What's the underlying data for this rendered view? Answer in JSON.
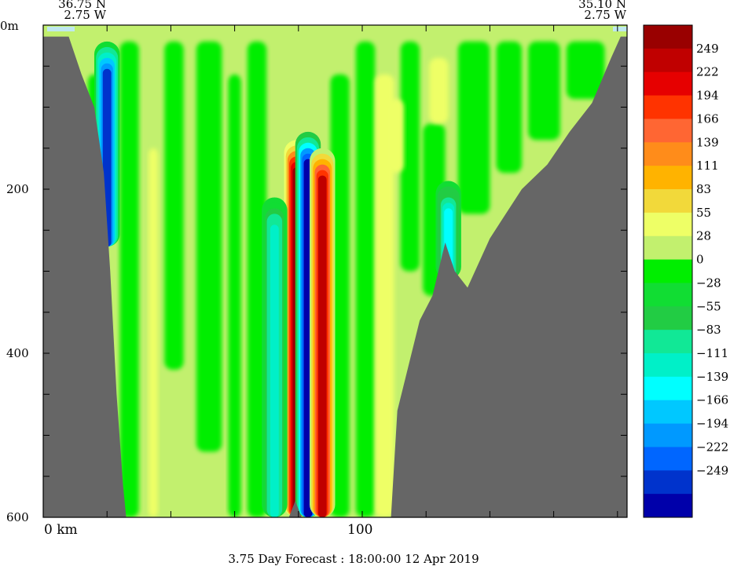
{
  "chart_data": {
    "type": "heatmap",
    "title": "",
    "xlabel": "",
    "ylabel": "",
    "corner_left": {
      "lat": "36.75 N",
      "lon": "2.75 W"
    },
    "corner_right": {
      "lat": "35.10 N",
      "lon": "2.75 W"
    },
    "x_ticks": [
      {
        "value": 0,
        "label": "0 km"
      },
      {
        "value": 100,
        "label": "100"
      }
    ],
    "xlim": [
      0,
      183
    ],
    "y_ticks": [
      {
        "value": 0,
        "label": "0m"
      },
      {
        "value": 200,
        "label": "200"
      },
      {
        "value": 400,
        "label": "400"
      },
      {
        "value": 600,
        "label": "600"
      }
    ],
    "ylim": [
      0,
      600
    ],
    "colorbar": {
      "labels": [
        "249",
        "222",
        "194",
        "166",
        "139",
        "111",
        "83",
        "55",
        "28",
        "0",
        "−28",
        "−55",
        "−83",
        "−111",
        "−139",
        "−166",
        "−194",
        "−222",
        "−249"
      ],
      "colors": [
        "#990000",
        "#c00000",
        "#e60000",
        "#ff3300",
        "#ff6633",
        "#ff8c1a",
        "#ffb300",
        "#f2d93a",
        "#eeff66",
        "#c2f06e",
        "#00ee00",
        "#11dd33",
        "#22cc44",
        "#11e896",
        "#00f0c8",
        "#00ffff",
        "#00c8ff",
        "#0099ff",
        "#0066ff",
        "#0033cc",
        "#0000aa"
      ]
    },
    "bathymetry_profile": [
      [
        0,
        14
      ],
      [
        8,
        14
      ],
      [
        12,
        60
      ],
      [
        16,
        100
      ],
      [
        19,
        180
      ],
      [
        21,
        300
      ],
      [
        23,
        450
      ],
      [
        25,
        560
      ],
      [
        26,
        600
      ],
      [
        77,
        600
      ],
      [
        79,
        580
      ],
      [
        81,
        600
      ],
      [
        109,
        600
      ],
      [
        111,
        470
      ],
      [
        118,
        360
      ],
      [
        122,
        330
      ],
      [
        126,
        265
      ],
      [
        129,
        300
      ],
      [
        133,
        320
      ],
      [
        140,
        260
      ],
      [
        150,
        200
      ],
      [
        158,
        170
      ],
      [
        165,
        130
      ],
      [
        172,
        95
      ],
      [
        178,
        40
      ],
      [
        181,
        14
      ],
      [
        183,
        14
      ]
    ],
    "anomaly_cores": [
      {
        "x": 79.5,
        "y_top": 180,
        "y_bottom": 600,
        "value": 270
      },
      {
        "x": 83,
        "y_top": 170,
        "y_bottom": 600,
        "value": -270
      },
      {
        "x": 87.5,
        "y_top": 190,
        "y_bottom": 600,
        "value": 240
      },
      {
        "x": 72.5,
        "y_top": 250,
        "y_bottom": 600,
        "value": -110
      },
      {
        "x": 127,
        "y_top": 230,
        "y_bottom": 310,
        "value": -130
      },
      {
        "x": 20,
        "y_top": 60,
        "y_bottom": 270,
        "value": -249
      }
    ],
    "caption": "3.75 Day Forecast : 18:00:00  12 Apr 2019"
  }
}
